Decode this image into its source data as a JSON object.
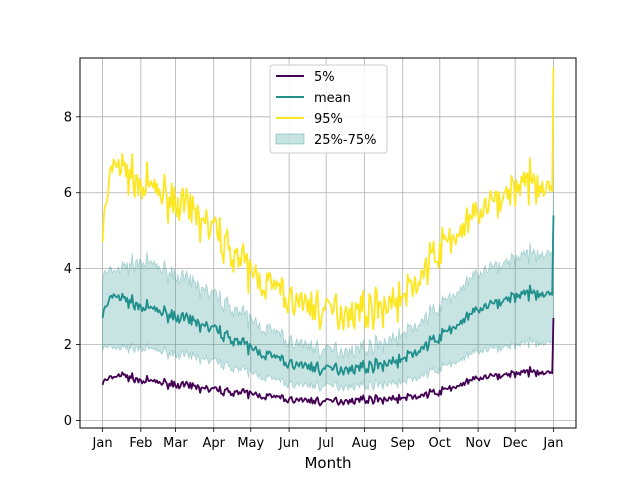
{
  "chart_data": {
    "type": "line",
    "xlabel": "Month",
    "ylabel": "",
    "ylim": [
      -0.2,
      9.55
    ],
    "yticks": [
      0,
      2,
      4,
      6,
      8
    ],
    "xticks": [
      {
        "day": 1,
        "label": "Jan"
      },
      {
        "day": 32,
        "label": "Feb"
      },
      {
        "day": 60,
        "label": "Mar"
      },
      {
        "day": 91,
        "label": "Apr"
      },
      {
        "day": 121,
        "label": "May"
      },
      {
        "day": 152,
        "label": "Jun"
      },
      {
        "day": 182,
        "label": "Jul"
      },
      {
        "day": 213,
        "label": "Aug"
      },
      {
        "day": 244,
        "label": "Sep"
      },
      {
        "day": 274,
        "label": "Oct"
      },
      {
        "day": 305,
        "label": "Nov"
      },
      {
        "day": 335,
        "label": "Dec"
      },
      {
        "day": 366,
        "label": "Jan"
      }
    ],
    "grid": true,
    "legend_position": "top-center",
    "legend": [
      {
        "label": "5%",
        "kind": "line",
        "color": "#440154"
      },
      {
        "label": "mean",
        "kind": "line",
        "color": "#21908c"
      },
      {
        "label": "95%",
        "kind": "line",
        "color": "#fde725"
      },
      {
        "label": "25%-75%",
        "kind": "band",
        "color": "#21908c"
      }
    ],
    "series": [
      {
        "name": "5%",
        "key": "p05",
        "color": "#440154",
        "anchors": [
          [
            1,
            1.0
          ],
          [
            15,
            1.2
          ],
          [
            32,
            1.05
          ],
          [
            60,
            0.95
          ],
          [
            91,
            0.8
          ],
          [
            121,
            0.7
          ],
          [
            152,
            0.55
          ],
          [
            182,
            0.5
          ],
          [
            213,
            0.55
          ],
          [
            244,
            0.58
          ],
          [
            274,
            0.75
          ],
          [
            305,
            1.1
          ],
          [
            335,
            1.25
          ],
          [
            366,
            1.3
          ]
        ],
        "noise": 0.18,
        "end_value": 2.7
      },
      {
        "name": "mean",
        "key": "mean",
        "color": "#21908c",
        "anchors": [
          [
            1,
            2.8
          ],
          [
            10,
            3.3
          ],
          [
            32,
            3.0
          ],
          [
            60,
            2.75
          ],
          [
            91,
            2.4
          ],
          [
            121,
            1.9
          ],
          [
            152,
            1.5
          ],
          [
            182,
            1.35
          ],
          [
            213,
            1.4
          ],
          [
            244,
            1.6
          ],
          [
            274,
            2.2
          ],
          [
            305,
            2.9
          ],
          [
            335,
            3.3
          ],
          [
            366,
            3.4
          ]
        ],
        "noise": 0.28,
        "end_value": 5.4
      },
      {
        "name": "95%",
        "key": "p95",
        "color": "#fde725",
        "anchors": [
          [
            1,
            5.0
          ],
          [
            10,
            6.8
          ],
          [
            32,
            6.2
          ],
          [
            60,
            5.8
          ],
          [
            91,
            5.0
          ],
          [
            121,
            3.9
          ],
          [
            152,
            3.2
          ],
          [
            182,
            2.9
          ],
          [
            213,
            2.9
          ],
          [
            244,
            3.2
          ],
          [
            274,
            4.5
          ],
          [
            305,
            5.4
          ],
          [
            335,
            6.2
          ],
          [
            366,
            6.3
          ]
        ],
        "noise": 0.85,
        "end_value": 9.3
      },
      {
        "name": "25%",
        "key": "p25",
        "color": "#21908c",
        "anchors": [
          [
            1,
            1.9
          ],
          [
            32,
            1.9
          ],
          [
            60,
            1.75
          ],
          [
            91,
            1.55
          ],
          [
            121,
            1.25
          ],
          [
            152,
            0.95
          ],
          [
            182,
            0.9
          ],
          [
            213,
            0.92
          ],
          [
            244,
            1.0
          ],
          [
            274,
            1.35
          ],
          [
            305,
            1.8
          ],
          [
            335,
            2.0
          ],
          [
            366,
            2.1
          ]
        ],
        "noise": 0.22,
        "end_value": 2.6
      },
      {
        "name": "75%",
        "key": "p75",
        "color": "#21908c",
        "anchors": [
          [
            1,
            3.8
          ],
          [
            32,
            4.2
          ],
          [
            60,
            3.85
          ],
          [
            91,
            3.3
          ],
          [
            121,
            2.65
          ],
          [
            152,
            2.1
          ],
          [
            182,
            1.85
          ],
          [
            213,
            1.9
          ],
          [
            244,
            2.25
          ],
          [
            274,
            3.0
          ],
          [
            305,
            3.85
          ],
          [
            335,
            4.3
          ],
          [
            366,
            4.5
          ]
        ],
        "noise": 0.4,
        "end_value": 6.0
      }
    ]
  }
}
